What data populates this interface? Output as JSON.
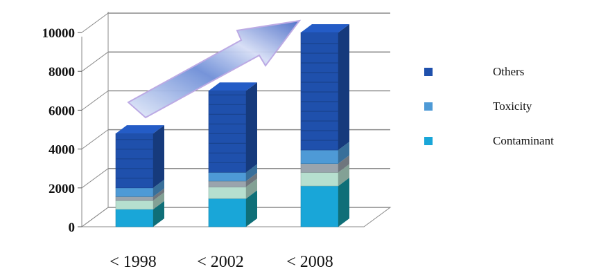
{
  "chart_data": {
    "type": "bar",
    "stacked": true,
    "three_d": true,
    "title": "",
    "xlabel": "",
    "ylabel": "",
    "categories": [
      "< 1998",
      "< 2002",
      "< 2008"
    ],
    "ylim": [
      0,
      10000
    ],
    "yticks": [
      0,
      2000,
      4000,
      6000,
      8000,
      10000
    ],
    "grid": true,
    "legend_position": "right",
    "series": [
      {
        "name": "Contaminant",
        "values": [
          900,
          1450,
          2100
        ],
        "color": "#19a6d8"
      },
      {
        "name": "",
        "values": [
          450,
          600,
          700
        ],
        "color": "#b6dfcf"
      },
      {
        "name": "",
        "values": [
          200,
          300,
          450
        ],
        "color": "#9aa4ad"
      },
      {
        "name": "Toxicity",
        "values": [
          450,
          450,
          700
        ],
        "color": "#4e9ad6"
      },
      {
        "name": "Others",
        "values": [
          2800,
          4200,
          6050
        ],
        "color": "#1f50ac"
      }
    ],
    "legend": [
      {
        "label": "Others",
        "color": "#1f50ac"
      },
      {
        "label": "Toxicity",
        "color": "#4e9ad6"
      },
      {
        "label": "Contaminant",
        "color": "#19a6d8"
      }
    ]
  }
}
